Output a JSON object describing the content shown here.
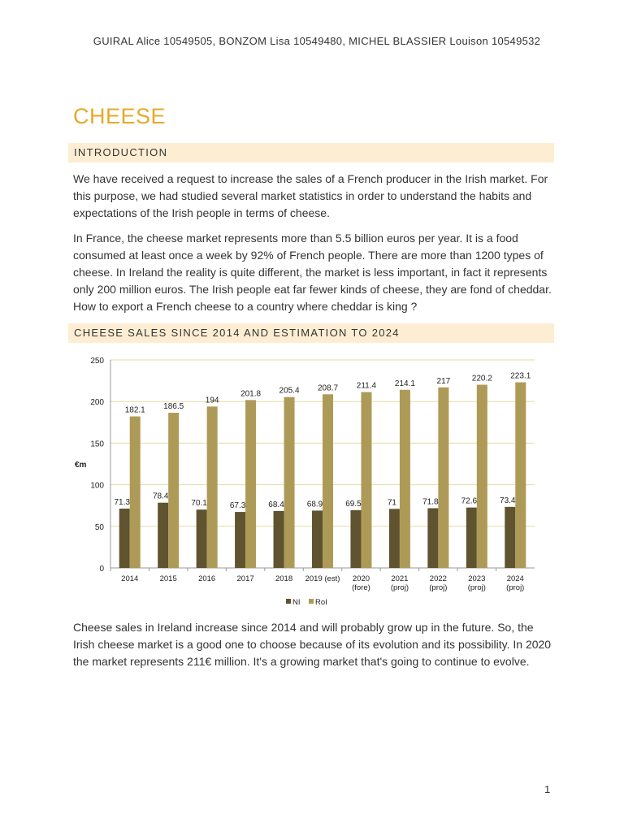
{
  "header": "GUIRAL Alice 10549505,  BONZOM Lisa 10549480,  MICHEL BLASSIER Louison 10549532",
  "title": "CHEESE",
  "sections": {
    "intro_heading": "INTRODUCTION",
    "intro_p1": "We have received a request to increase the sales of a French producer in the Irish market. For this purpose, we had studied several market statistics in order to understand the habits and expectations of the Irish people in terms of cheese.",
    "intro_p2": "In France, the cheese market represents more than 5.5 billion euros per year. It is a food consumed at least once a week by 92% of French people. There are more than 1200 types of cheese. In Ireland the reality is quite different, the market is less important, in fact it represents only 200 million euros. The Irish people eat far fewer kinds of cheese, they are fond of cheddar. How to export a French cheese to a country where cheddar is king ?",
    "sales_heading": "CHEESE SALES SINCE 2014 AND ESTIMATION TO 2024",
    "sales_p1": "Cheese sales in Ireland increase since 2014 and will probably grow up in the future. So, the Irish cheese market is a good one to choose because of its evolution and its possibility. In 2020 the market represents 211€ million. It's a growing market that's going to continue to evolve."
  },
  "page_number": "1",
  "colors": {
    "title": "#e8a92a",
    "band": "#fdeed3",
    "NI": "#5f5330",
    "RoI": "#ae9a57",
    "grid": "#e3dba6"
  },
  "chart_data": {
    "type": "bar",
    "categories": [
      [
        "2014"
      ],
      [
        "2015"
      ],
      [
        "2016"
      ],
      [
        "2017"
      ],
      [
        "2018"
      ],
      [
        "2019 (est)"
      ],
      [
        "2020",
        "(fore)"
      ],
      [
        "2021",
        "(proj)"
      ],
      [
        "2022",
        "(proj)"
      ],
      [
        "2023",
        "(proj)"
      ],
      [
        "2024",
        "(proj)"
      ]
    ],
    "series": [
      {
        "name": "NI",
        "values": [
          71.3,
          78.4,
          70.1,
          67.3,
          68.4,
          68.9,
          69.5,
          71,
          71.8,
          72.6,
          73.4
        ]
      },
      {
        "name": "RoI",
        "values": [
          182.1,
          186.5,
          194,
          201.8,
          205.4,
          208.7,
          211.4,
          214.1,
          217,
          220.2,
          223.1
        ]
      }
    ],
    "ylabel": "€m",
    "ylim": [
      0,
      250
    ],
    "yticks": [
      0,
      50,
      100,
      150,
      200,
      250
    ],
    "grid": true,
    "legend": "bottom"
  }
}
